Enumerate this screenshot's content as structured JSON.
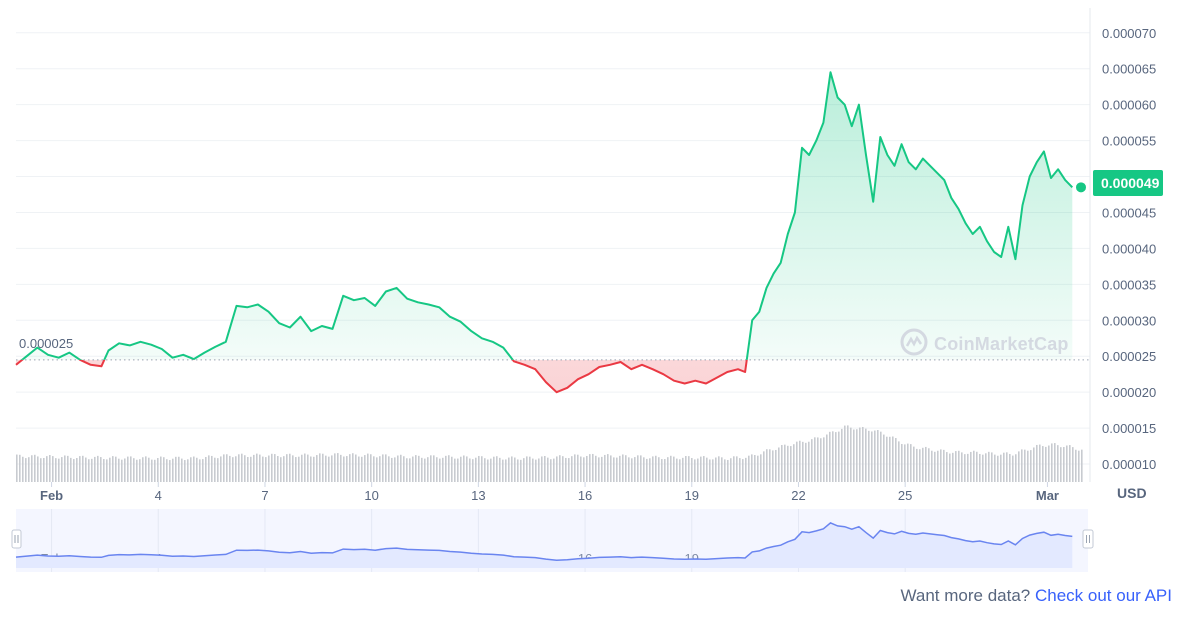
{
  "chart_data": {
    "type": "line",
    "title": "",
    "currency_label": "USD",
    "y_ticks": [
      "0.000070",
      "0.000065",
      "0.000060",
      "0.000055",
      "0.000050",
      "0.000045",
      "0.000040",
      "0.000035",
      "0.000030",
      "0.000025",
      "0.000020",
      "0.000015",
      "0.000010"
    ],
    "ylim": [
      7.5e-06,
      7.15e-05
    ],
    "x_ticks": [
      {
        "label": "Feb",
        "day": 1,
        "bold": true
      },
      {
        "label": "4",
        "day": 4
      },
      {
        "label": "7",
        "day": 7
      },
      {
        "label": "10",
        "day": 10
      },
      {
        "label": "13",
        "day": 13
      },
      {
        "label": "16",
        "day": 16
      },
      {
        "label": "19",
        "day": 19
      },
      {
        "label": "22",
        "day": 22
      },
      {
        "label": "25",
        "day": 25
      },
      {
        "label": "Mar",
        "day": 29,
        "bold": true
      }
    ],
    "xlim_days": [
      0.0,
      30.0
    ],
    "baseline_value": 2.45e-05,
    "baseline_label": "0.000025",
    "current_value": 4.91e-05,
    "current_label": "0.000049",
    "colors": {
      "up": "#16c784",
      "down": "#ea3943",
      "volume": "#c8cbd0",
      "navigator_line": "#6a85f0",
      "navigator_fill": "#e3e9ff",
      "axis_text": "#58667e"
    },
    "price_series": [
      [
        0.0,
        2.38e-05
      ],
      [
        0.3,
        2.5e-05
      ],
      [
        0.6,
        2.62e-05
      ],
      [
        0.9,
        2.52e-05
      ],
      [
        1.2,
        2.48e-05
      ],
      [
        1.5,
        2.55e-05
      ],
      [
        1.8,
        2.45e-05
      ],
      [
        2.1,
        2.38e-05
      ],
      [
        2.4,
        2.36e-05
      ],
      [
        2.6,
        2.58e-05
      ],
      [
        2.9,
        2.68e-05
      ],
      [
        3.2,
        2.65e-05
      ],
      [
        3.5,
        2.7e-05
      ],
      [
        3.8,
        2.66e-05
      ],
      [
        4.1,
        2.6e-05
      ],
      [
        4.4,
        2.48e-05
      ],
      [
        4.7,
        2.52e-05
      ],
      [
        5.0,
        2.46e-05
      ],
      [
        5.3,
        2.55e-05
      ],
      [
        5.6,
        2.63e-05
      ],
      [
        5.9,
        2.7e-05
      ],
      [
        6.2,
        3.2e-05
      ],
      [
        6.5,
        3.18e-05
      ],
      [
        6.8,
        3.22e-05
      ],
      [
        7.1,
        3.12e-05
      ],
      [
        7.4,
        2.96e-05
      ],
      [
        7.7,
        2.9e-05
      ],
      [
        8.0,
        3.05e-05
      ],
      [
        8.3,
        2.85e-05
      ],
      [
        8.6,
        2.92e-05
      ],
      [
        8.9,
        2.88e-05
      ],
      [
        9.2,
        3.34e-05
      ],
      [
        9.5,
        3.28e-05
      ],
      [
        9.8,
        3.31e-05
      ],
      [
        10.1,
        3.2e-05
      ],
      [
        10.4,
        3.4e-05
      ],
      [
        10.7,
        3.45e-05
      ],
      [
        11.0,
        3.3e-05
      ],
      [
        11.3,
        3.25e-05
      ],
      [
        11.6,
        3.22e-05
      ],
      [
        11.9,
        3.18e-05
      ],
      [
        12.2,
        3.05e-05
      ],
      [
        12.5,
        2.98e-05
      ],
      [
        12.8,
        2.85e-05
      ],
      [
        13.1,
        2.75e-05
      ],
      [
        13.4,
        2.7e-05
      ],
      [
        13.7,
        2.62e-05
      ],
      [
        14.0,
        2.43e-05
      ],
      [
        14.3,
        2.38e-05
      ],
      [
        14.6,
        2.32e-05
      ],
      [
        14.9,
        2.14e-05
      ],
      [
        15.2,
        2e-05
      ],
      [
        15.5,
        2.06e-05
      ],
      [
        15.8,
        2.18e-05
      ],
      [
        16.1,
        2.25e-05
      ],
      [
        16.4,
        2.35e-05
      ],
      [
        16.7,
        2.38e-05
      ],
      [
        17.0,
        2.42e-05
      ],
      [
        17.3,
        2.32e-05
      ],
      [
        17.6,
        2.38e-05
      ],
      [
        17.9,
        2.32e-05
      ],
      [
        18.2,
        2.25e-05
      ],
      [
        18.5,
        2.16e-05
      ],
      [
        18.8,
        2.12e-05
      ],
      [
        19.1,
        2.16e-05
      ],
      [
        19.4,
        2.12e-05
      ],
      [
        19.7,
        2.2e-05
      ],
      [
        20.0,
        2.28e-05
      ],
      [
        20.3,
        2.32e-05
      ],
      [
        20.5,
        2.28e-05
      ],
      [
        20.7,
        3e-05
      ],
      [
        20.9,
        3.12e-05
      ],
      [
        21.1,
        3.45e-05
      ],
      [
        21.3,
        3.65e-05
      ],
      [
        21.5,
        3.8e-05
      ],
      [
        21.7,
        4.2e-05
      ],
      [
        21.9,
        4.5e-05
      ],
      [
        22.1,
        5.4e-05
      ],
      [
        22.3,
        5.3e-05
      ],
      [
        22.5,
        5.5e-05
      ],
      [
        22.7,
        5.75e-05
      ],
      [
        22.9,
        6.45e-05
      ],
      [
        23.1,
        6.1e-05
      ],
      [
        23.3,
        6e-05
      ],
      [
        23.5,
        5.7e-05
      ],
      [
        23.7,
        6e-05
      ],
      [
        23.9,
        5.3e-05
      ],
      [
        24.1,
        4.65e-05
      ],
      [
        24.3,
        5.55e-05
      ],
      [
        24.5,
        5.3e-05
      ],
      [
        24.7,
        5.15e-05
      ],
      [
        24.9,
        5.45e-05
      ],
      [
        25.1,
        5.2e-05
      ],
      [
        25.3,
        5.1e-05
      ],
      [
        25.5,
        5.25e-05
      ],
      [
        25.7,
        5.15e-05
      ],
      [
        25.9,
        5.05e-05
      ],
      [
        26.1,
        4.95e-05
      ],
      [
        26.3,
        4.7e-05
      ],
      [
        26.5,
        4.55e-05
      ],
      [
        26.7,
        4.35e-05
      ],
      [
        26.9,
        4.2e-05
      ],
      [
        27.1,
        4.3e-05
      ],
      [
        27.3,
        4.1e-05
      ],
      [
        27.5,
        3.95e-05
      ],
      [
        27.7,
        3.88e-05
      ],
      [
        27.9,
        4.3e-05
      ],
      [
        28.1,
        3.85e-05
      ],
      [
        28.3,
        4.6e-05
      ],
      [
        28.5,
        5e-05
      ],
      [
        28.7,
        5.2e-05
      ],
      [
        28.9,
        5.35e-05
      ],
      [
        29.1,
        4.98e-05
      ],
      [
        29.3,
        5.1e-05
      ],
      [
        29.5,
        4.95e-05
      ],
      [
        29.7,
        4.85e-05
      ]
    ],
    "volume_series": [
      [
        0.0,
        1.11e-05
      ],
      [
        2.0,
        1.09e-05
      ],
      [
        4.0,
        1.08e-05
      ],
      [
        5.0,
        1.08e-05
      ],
      [
        6.0,
        1.12e-05
      ],
      [
        7.0,
        1.12e-05
      ],
      [
        8.0,
        1.12e-05
      ],
      [
        9.0,
        1.13e-05
      ],
      [
        10.0,
        1.12e-05
      ],
      [
        11.0,
        1.1e-05
      ],
      [
        12.0,
        1.1e-05
      ],
      [
        13.0,
        1.09e-05
      ],
      [
        14.0,
        1.08e-05
      ],
      [
        15.0,
        1.09e-05
      ],
      [
        16.0,
        1.12e-05
      ],
      [
        17.0,
        1.11e-05
      ],
      [
        18.0,
        1.09e-05
      ],
      [
        19.0,
        1.09e-05
      ],
      [
        20.0,
        1.08e-05
      ],
      [
        20.6,
        1.1e-05
      ],
      [
        21.2,
        1.2e-05
      ],
      [
        21.8,
        1.28e-05
      ],
      [
        22.4,
        1.34e-05
      ],
      [
        23.0,
        1.45e-05
      ],
      [
        23.3,
        1.52e-05
      ],
      [
        23.6,
        1.5e-05
      ],
      [
        24.0,
        1.48e-05
      ],
      [
        24.4,
        1.42e-05
      ],
      [
        24.8,
        1.32e-05
      ],
      [
        25.2,
        1.24e-05
      ],
      [
        25.6,
        1.21e-05
      ],
      [
        26.0,
        1.18e-05
      ],
      [
        26.5,
        1.16e-05
      ],
      [
        27.0,
        1.16e-05
      ],
      [
        27.5,
        1.14e-05
      ],
      [
        28.0,
        1.14e-05
      ],
      [
        28.4,
        1.2e-05
      ],
      [
        28.8,
        1.26e-05
      ],
      [
        29.2,
        1.27e-05
      ],
      [
        29.6,
        1.24e-05
      ],
      [
        30.0,
        1.19e-05
      ]
    ],
    "navigator": {
      "x_ticks": [
        {
          "label": "Feb",
          "day": 1,
          "bold": true
        },
        {
          "label": "4",
          "day": 4
        },
        {
          "label": "7",
          "day": 7
        },
        {
          "label": "10",
          "day": 10
        },
        {
          "label": "13",
          "day": 13
        },
        {
          "label": "16",
          "day": 16
        },
        {
          "label": "19",
          "day": 19
        },
        {
          "label": "22",
          "day": 22
        },
        {
          "label": "25",
          "day": 25
        }
      ]
    }
  },
  "watermark": {
    "text": "CoinMarketCap",
    "icon": "coinmarketcap-logo-icon"
  },
  "footer": {
    "prefix": "Want more data? ",
    "link_text": "Check out our API"
  }
}
